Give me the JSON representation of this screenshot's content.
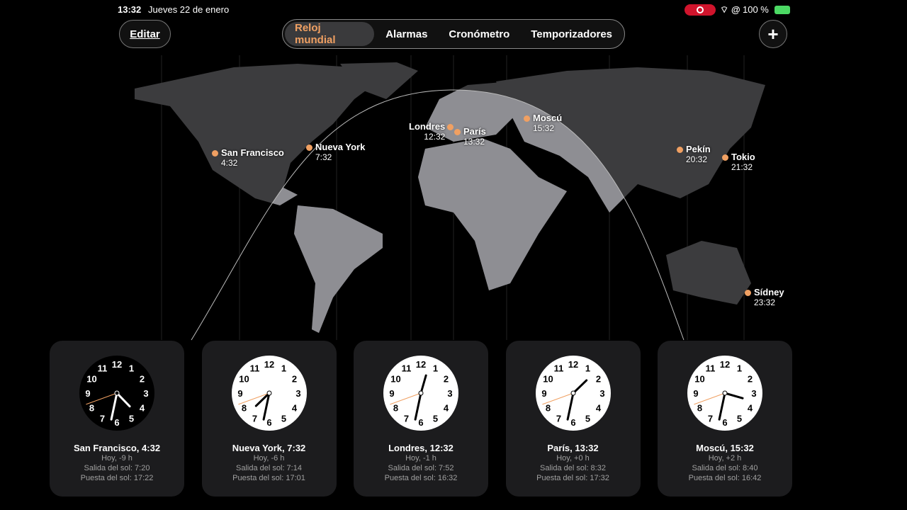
{
  "status": {
    "time": "13:32",
    "date": "Jueves 22 de enero",
    "battery": "100 %"
  },
  "toolbar": {
    "edit": "Editar",
    "add": "+",
    "tabs": [
      "Reloj mundial",
      "Alarmas",
      "Cronómetro",
      "Temporizadores"
    ],
    "active_tab": 0
  },
  "colors": {
    "accent": "#f0a062",
    "card": "#1c1c1e",
    "record": "#d0142c"
  },
  "map_cities": [
    {
      "name": "San Francisco",
      "time": "4:32"
    },
    {
      "name": "Nueva York",
      "time": "7:32"
    },
    {
      "name": "Londres",
      "time": "12:32"
    },
    {
      "name": "París",
      "time": "13:32"
    },
    {
      "name": "Moscú",
      "time": "15:32"
    },
    {
      "name": "Pekín",
      "time": "20:32"
    },
    {
      "name": "Tokio",
      "time": "21:32"
    },
    {
      "name": "Sídney",
      "time": "23:32"
    }
  ],
  "clocks": [
    {
      "title": "San Francisco, 4:32",
      "offset": "Hoy, -9 h",
      "sunrise": "Salida del sol: 7:20",
      "sunset": "Puesta del sol: 17:22",
      "h": 4,
      "m": 32,
      "night": true
    },
    {
      "title": "Nueva York, 7:32",
      "offset": "Hoy, -6 h",
      "sunrise": "Salida del sol: 7:14",
      "sunset": "Puesta del sol: 17:01",
      "h": 7,
      "m": 32,
      "night": false
    },
    {
      "title": "Londres, 12:32",
      "offset": "Hoy, -1 h",
      "sunrise": "Salida del sol: 7:52",
      "sunset": "Puesta del sol: 16:32",
      "h": 12,
      "m": 32,
      "night": false
    },
    {
      "title": "París, 13:32",
      "offset": "Hoy, +0 h",
      "sunrise": "Salida del sol: 8:32",
      "sunset": "Puesta del sol: 17:32",
      "h": 13,
      "m": 32,
      "night": false
    },
    {
      "title": "Moscú, 15:32",
      "offset": "Hoy, +2 h",
      "sunrise": "Salida del sol: 8:40",
      "sunset": "Puesta del sol: 16:42",
      "h": 15,
      "m": 32,
      "night": false
    }
  ]
}
